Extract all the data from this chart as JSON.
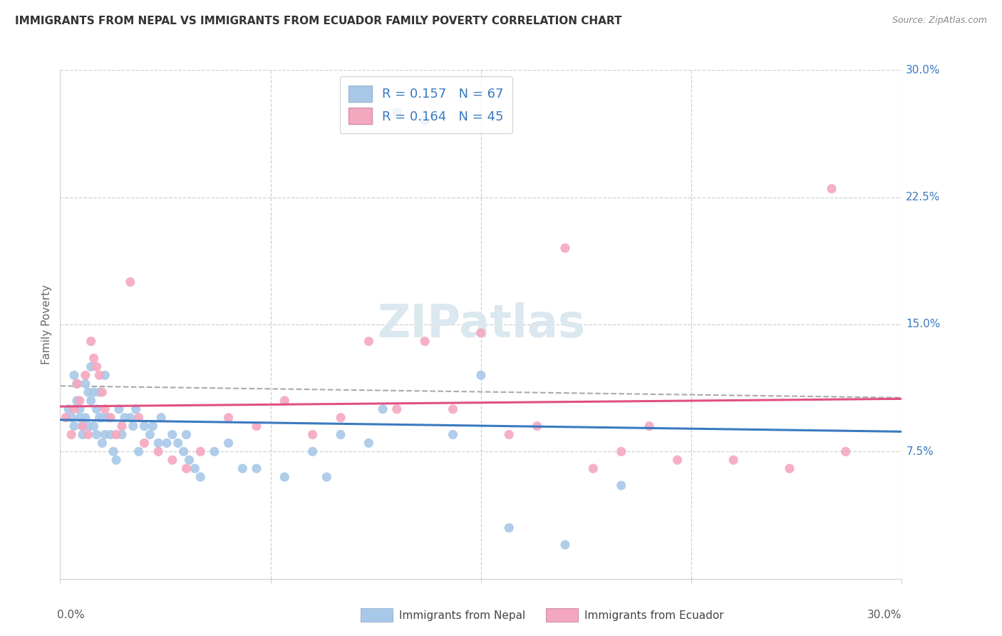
{
  "title": "IMMIGRANTS FROM NEPAL VS IMMIGRANTS FROM ECUADOR FAMILY POVERTY CORRELATION CHART",
  "source": "Source: ZipAtlas.com",
  "ylabel": "Family Poverty",
  "xlim": [
    0.0,
    0.3
  ],
  "ylim": [
    0.0,
    0.3
  ],
  "nepal_R": 0.157,
  "nepal_N": 67,
  "ecuador_R": 0.164,
  "ecuador_N": 45,
  "nepal_color": "#a8c8e8",
  "ecuador_color": "#f4a8c0",
  "nepal_line_color": "#3a7abf",
  "ecuador_line_color": "#e05080",
  "dashed_line_color": "#aaaaaa",
  "grid_color": "#d0d0d0",
  "ytick_color": "#3a7abf",
  "xtick_color": "#555555",
  "legend_text_color": "#3a7abf",
  "title_color": "#333333",
  "source_color": "#888888",
  "ylabel_color": "#666666",
  "watermark_color": "#dce8f0",
  "nepal_x": [
    0.003,
    0.004,
    0.005,
    0.005,
    0.006,
    0.006,
    0.007,
    0.007,
    0.008,
    0.008,
    0.009,
    0.009,
    0.01,
    0.01,
    0.011,
    0.011,
    0.012,
    0.012,
    0.013,
    0.013,
    0.014,
    0.014,
    0.015,
    0.015,
    0.016,
    0.016,
    0.017,
    0.018,
    0.019,
    0.02,
    0.021,
    0.022,
    0.023,
    0.025,
    0.026,
    0.027,
    0.028,
    0.03,
    0.032,
    0.033,
    0.035,
    0.036,
    0.038,
    0.04,
    0.042,
    0.044,
    0.045,
    0.046,
    0.048,
    0.05,
    0.055,
    0.06,
    0.065,
    0.07,
    0.08,
    0.09,
    0.095,
    0.1,
    0.11,
    0.115,
    0.12,
    0.13,
    0.14,
    0.15,
    0.16,
    0.18,
    0.2
  ],
  "nepal_y": [
    0.1,
    0.095,
    0.12,
    0.09,
    0.115,
    0.105,
    0.095,
    0.1,
    0.09,
    0.085,
    0.115,
    0.095,
    0.11,
    0.09,
    0.125,
    0.105,
    0.11,
    0.09,
    0.1,
    0.085,
    0.11,
    0.095,
    0.095,
    0.08,
    0.12,
    0.085,
    0.095,
    0.085,
    0.075,
    0.07,
    0.1,
    0.085,
    0.095,
    0.095,
    0.09,
    0.1,
    0.075,
    0.09,
    0.085,
    0.09,
    0.08,
    0.095,
    0.08,
    0.085,
    0.08,
    0.075,
    0.085,
    0.07,
    0.065,
    0.06,
    0.075,
    0.08,
    0.065,
    0.065,
    0.06,
    0.075,
    0.06,
    0.085,
    0.08,
    0.1,
    0.275,
    0.27,
    0.085,
    0.12,
    0.03,
    0.02,
    0.055
  ],
  "ecuador_x": [
    0.002,
    0.004,
    0.005,
    0.006,
    0.007,
    0.008,
    0.009,
    0.01,
    0.011,
    0.012,
    0.013,
    0.014,
    0.015,
    0.016,
    0.018,
    0.02,
    0.022,
    0.025,
    0.028,
    0.03,
    0.035,
    0.04,
    0.045,
    0.05,
    0.06,
    0.07,
    0.08,
    0.09,
    0.1,
    0.11,
    0.12,
    0.13,
    0.14,
    0.15,
    0.16,
    0.17,
    0.18,
    0.19,
    0.2,
    0.21,
    0.22,
    0.24,
    0.26,
    0.275,
    0.28
  ],
  "ecuador_y": [
    0.095,
    0.085,
    0.1,
    0.115,
    0.105,
    0.09,
    0.12,
    0.085,
    0.14,
    0.13,
    0.125,
    0.12,
    0.11,
    0.1,
    0.095,
    0.085,
    0.09,
    0.175,
    0.095,
    0.08,
    0.075,
    0.07,
    0.065,
    0.075,
    0.095,
    0.09,
    0.105,
    0.085,
    0.095,
    0.14,
    0.1,
    0.14,
    0.1,
    0.145,
    0.085,
    0.09,
    0.195,
    0.065,
    0.075,
    0.09,
    0.07,
    0.07,
    0.065,
    0.23,
    0.075
  ]
}
